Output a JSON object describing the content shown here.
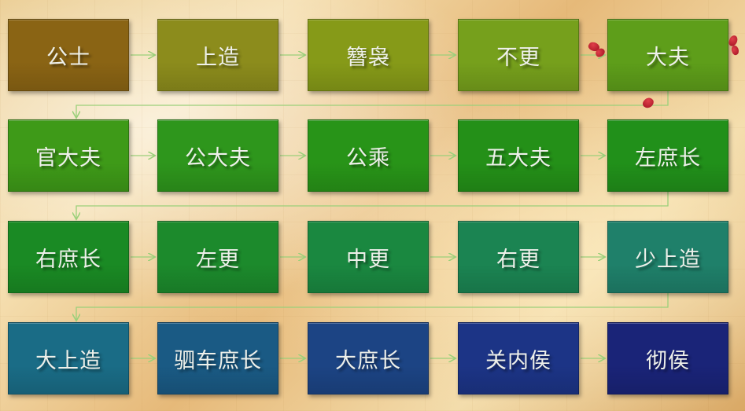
{
  "ranks": [
    {
      "label": "公士",
      "color": "#8a6414"
    },
    {
      "label": "上造",
      "color": "#8c8c1c"
    },
    {
      "label": "簪袅",
      "color": "#869a18"
    },
    {
      "label": "不更",
      "color": "#76a01c"
    },
    {
      "label": "大夫",
      "color": "#5e9e1a"
    },
    {
      "label": "官大夫",
      "color": "#3e9a18"
    },
    {
      "label": "公大夫",
      "color": "#2e961c"
    },
    {
      "label": "公乘",
      "color": "#289418"
    },
    {
      "label": "五大夫",
      "color": "#249018"
    },
    {
      "label": "左庶长",
      "color": "#21901a"
    },
    {
      "label": "右庶长",
      "color": "#1a8a24"
    },
    {
      "label": "左更",
      "color": "#1c8a2c"
    },
    {
      "label": "中更",
      "color": "#1a8840"
    },
    {
      "label": "右更",
      "color": "#1b8452"
    },
    {
      "label": "少上造",
      "color": "#1f806a"
    },
    {
      "label": "大上造",
      "color": "#1a6c86"
    },
    {
      "label": "驷车庶长",
      "color": "#1a5a84"
    },
    {
      "label": "大庶长",
      "color": "#1c4484"
    },
    {
      "label": "关内侯",
      "color": "#1c3486"
    },
    {
      "label": "彻侯",
      "color": "#1a2478"
    }
  ],
  "connector_color": "#9bd07a"
}
